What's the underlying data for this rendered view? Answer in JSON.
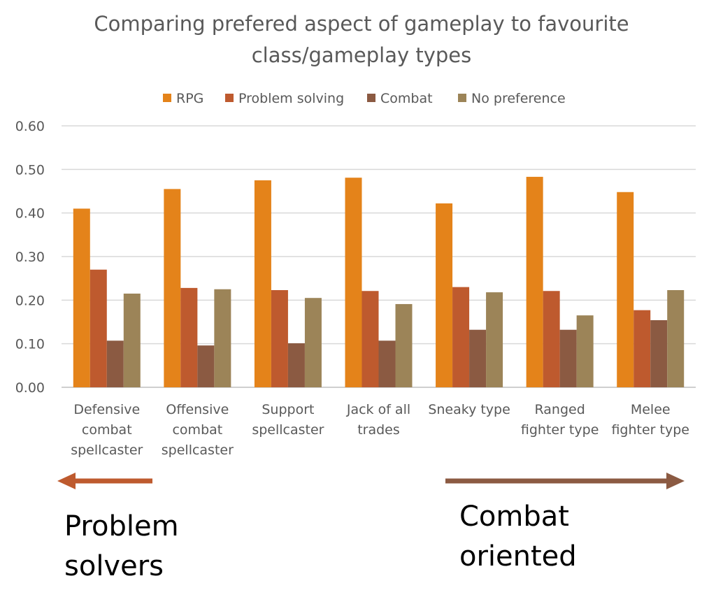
{
  "chart_data": {
    "type": "bar",
    "title_lines": [
      "Comparing prefered aspect of gameplay to favourite",
      "class/gameplay types"
    ],
    "categories": [
      [
        "Defensive",
        "combat",
        "spellcaster"
      ],
      [
        "Offensive",
        "combat",
        "spellcaster"
      ],
      [
        "Support",
        "spellcaster"
      ],
      [
        "Jack of all",
        "trades"
      ],
      [
        "Sneaky type"
      ],
      [
        "Ranged",
        "fighter type"
      ],
      [
        "Melee",
        "fighter type"
      ]
    ],
    "series": [
      {
        "name": "RPG",
        "color": "#E4831A",
        "values": [
          0.41,
          0.455,
          0.475,
          0.481,
          0.422,
          0.483,
          0.448
        ]
      },
      {
        "name": "Problem solving",
        "color": "#BE5A2E",
        "values": [
          0.27,
          0.228,
          0.223,
          0.221,
          0.23,
          0.221,
          0.177
        ]
      },
      {
        "name": "Combat",
        "color": "#8B5A42",
        "values": [
          0.107,
          0.096,
          0.101,
          0.107,
          0.132,
          0.132,
          0.154
        ]
      },
      {
        "name": "No preference",
        "color": "#9C8458",
        "values": [
          0.215,
          0.225,
          0.205,
          0.191,
          0.218,
          0.165,
          0.223
        ]
      }
    ],
    "ylim": [
      0,
      0.6
    ],
    "yticks": [
      "0.00",
      "0.10",
      "0.20",
      "0.30",
      "0.40",
      "0.50",
      "0.60"
    ],
    "grid": true,
    "legend_position": "top",
    "annotations": {
      "left_arrow": {
        "lines": [
          "Problem",
          "solvers"
        ],
        "color": "#BE5A2E"
      },
      "right_arrow": {
        "lines": [
          "Combat",
          "oriented"
        ],
        "color": "#8B5A42"
      }
    }
  }
}
